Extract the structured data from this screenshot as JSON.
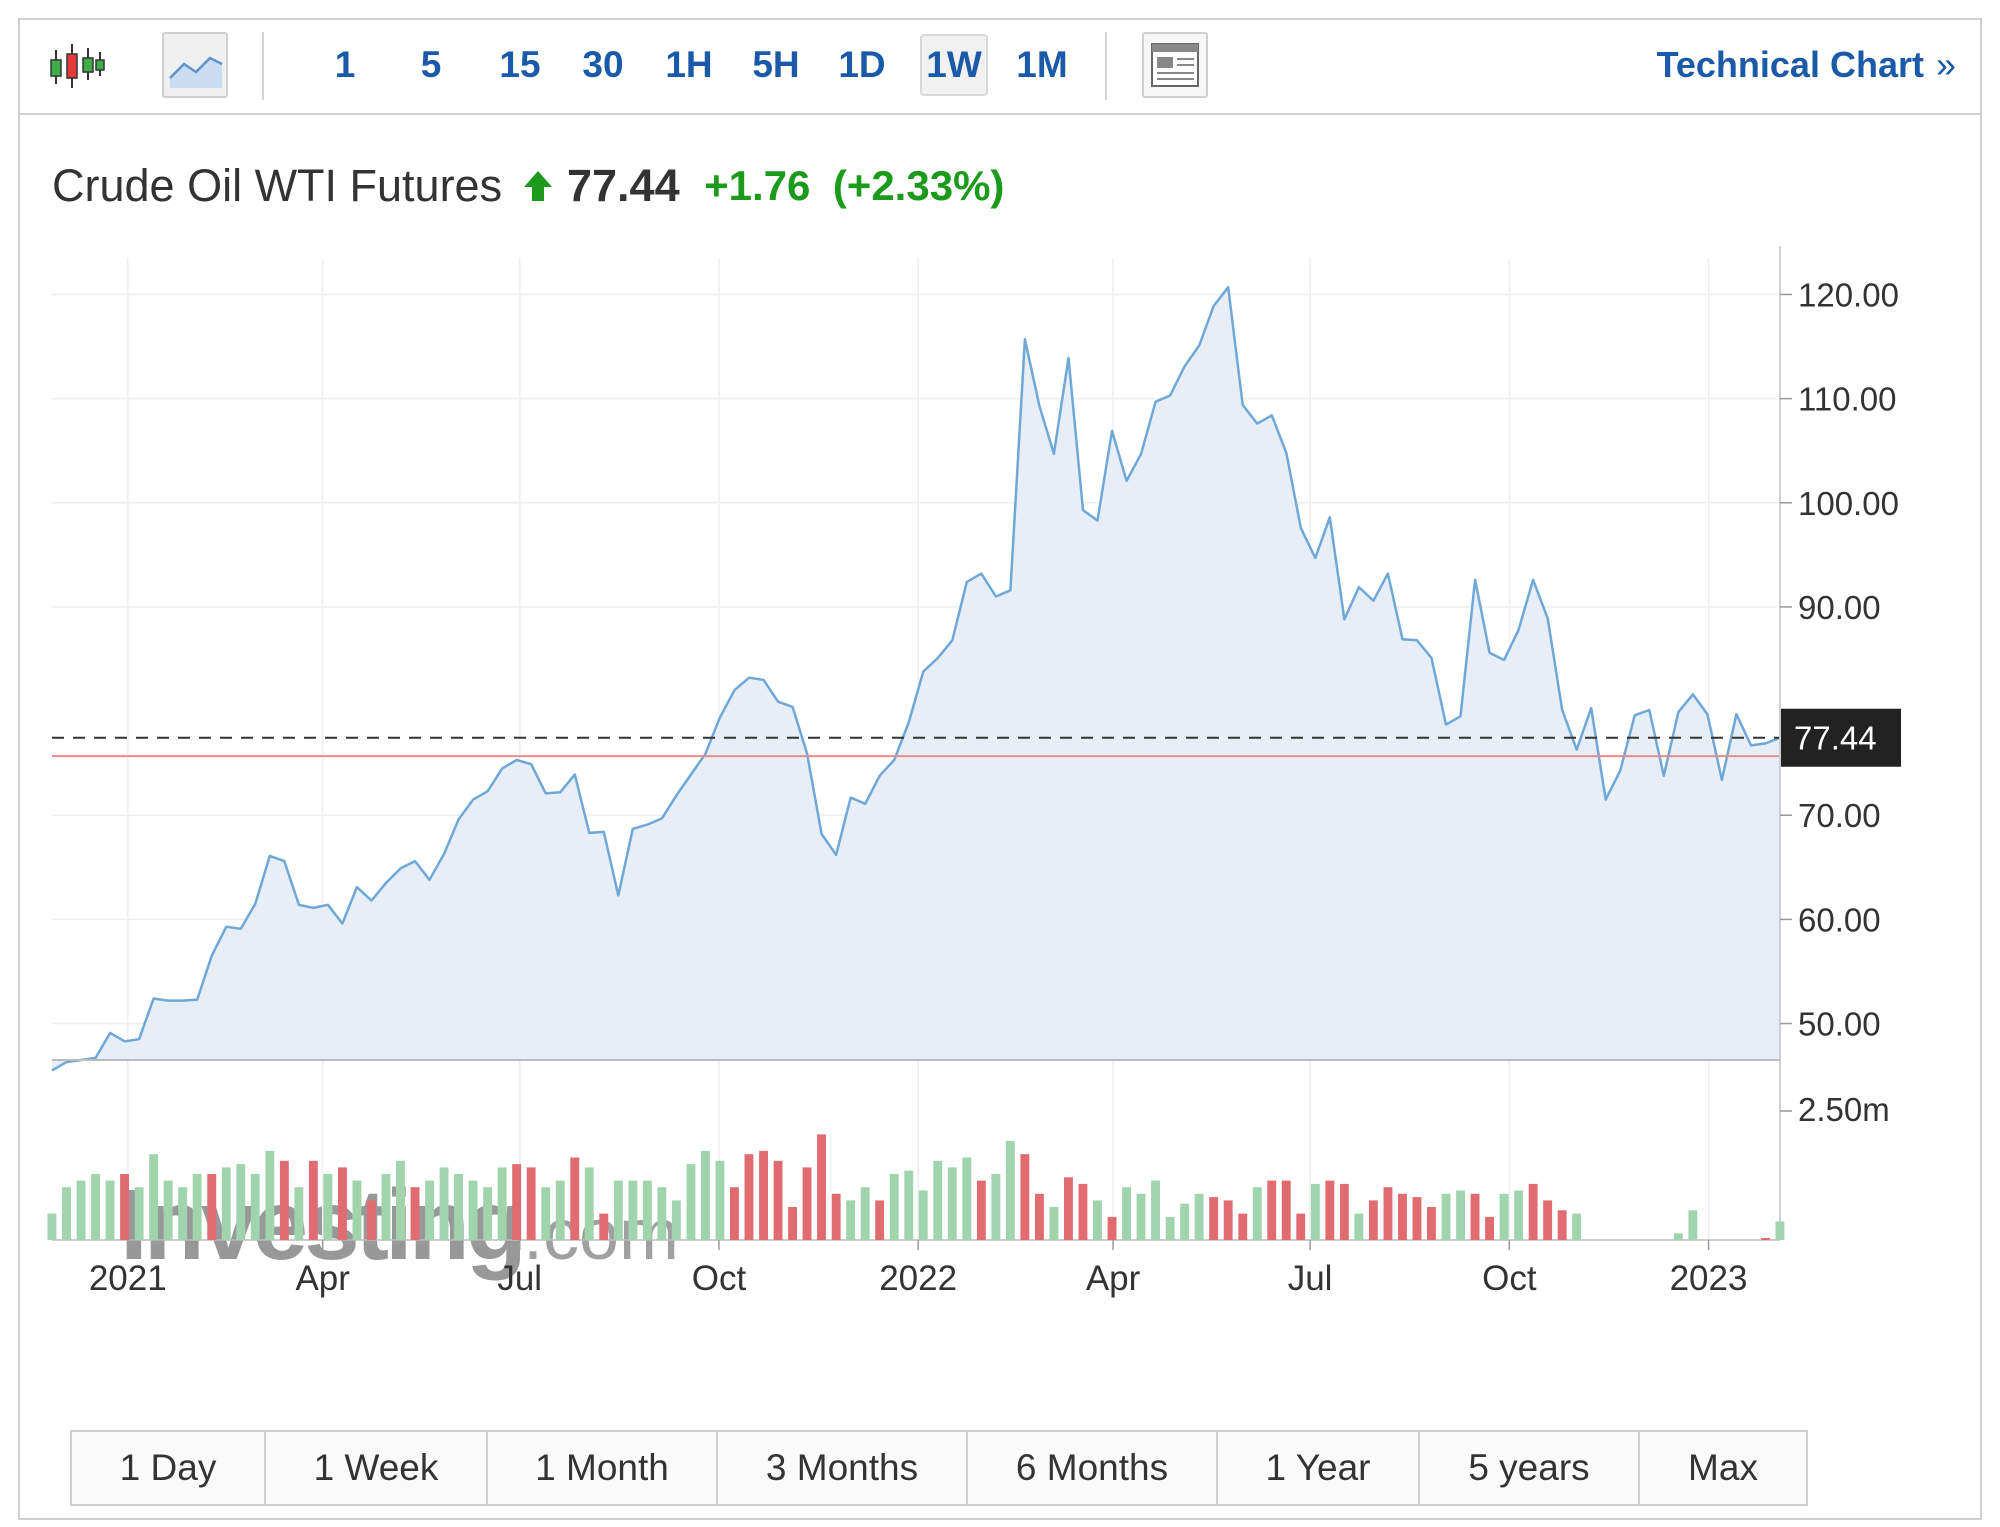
{
  "toolbar": {
    "intervals": [
      "1",
      "5",
      "15",
      "30",
      "1H",
      "5H",
      "1D",
      "1W",
      "1M"
    ],
    "active_interval": "1W",
    "technical_chart_label": "Technical Chart",
    "technical_chart_chevron": "»"
  },
  "instrument": {
    "name": "Crude Oil WTI Futures",
    "last": "77.44",
    "change": "+1.76",
    "change_pct": "(+2.33%)"
  },
  "colors": {
    "line": "#6fa8d6",
    "area": "#e7eef8",
    "up_volume": "#9fd4ac",
    "down_volume": "#e06c72",
    "price_line": "#f08a8a",
    "accent_green": "#1b9a1b",
    "link_blue": "#1a5aa8"
  },
  "watermark": {
    "brand": "Investing",
    "suffix": ".com"
  },
  "range_buttons": [
    "1 Day",
    "1 Week",
    "1 Month",
    "3 Months",
    "6 Months",
    "1 Year",
    "5 years",
    "Max"
  ],
  "chart_data": {
    "type": "area",
    "title": "Crude Oil WTI Futures",
    "frequency": "weekly",
    "x_start": "2020-11-27",
    "x_end": "2023-02-03",
    "x_ticks": [
      {
        "label": "2021",
        "date": "2021-01-01"
      },
      {
        "label": "Apr",
        "date": "2021-04-01"
      },
      {
        "label": "Jul",
        "date": "2021-07-01"
      },
      {
        "label": "Oct",
        "date": "2021-10-01"
      },
      {
        "label": "2022",
        "date": "2022-01-01"
      },
      {
        "label": "Apr",
        "date": "2022-04-01"
      },
      {
        "label": "Jul",
        "date": "2022-07-01"
      },
      {
        "label": "Oct",
        "date": "2022-10-01"
      },
      {
        "label": "2023",
        "date": "2023-01-01"
      }
    ],
    "y_ticks": [
      "120.00",
      "110.00",
      "100.00",
      "90.00",
      "70.00",
      "60.00",
      "50.00"
    ],
    "ylim": [
      46.5,
      123.5
    ],
    "current_price": 77.44,
    "current_price_label": "77.44",
    "previous_close": 75.68,
    "grid": true,
    "price": [
      45.5,
      46.3,
      46.5,
      46.7,
      49.1,
      48.3,
      48.5,
      52.4,
      52.2,
      52.2,
      52.3,
      56.5,
      59.3,
      59.1,
      61.5,
      66.1,
      65.6,
      61.4,
      61.1,
      61.4,
      59.6,
      63.1,
      61.8,
      63.5,
      64.9,
      65.6,
      63.8,
      66.3,
      69.6,
      71.5,
      72.3,
      74.5,
      75.3,
      74.9,
      72.1,
      72.2,
      73.9,
      68.3,
      68.4,
      62.3,
      68.7,
      69.1,
      69.7,
      71.9,
      73.9,
      75.9,
      79.4,
      82.0,
      83.2,
      83.0,
      80.9,
      80.4,
      75.9,
      68.2,
      66.2,
      71.7,
      71.1,
      73.8,
      75.3,
      78.9,
      83.8,
      85.1,
      86.8,
      92.4,
      93.2,
      91.0,
      91.6,
      115.7,
      109.3,
      104.7,
      113.9,
      99.3,
      98.3,
      106.9,
      102.1,
      104.7,
      109.7,
      110.3,
      113.1,
      115.1,
      118.9,
      120.7,
      109.4,
      107.6,
      108.4,
      104.8,
      97.6,
      94.7,
      98.6,
      88.8,
      91.9,
      90.6,
      93.2,
      86.9,
      86.8,
      85.1,
      78.7,
      79.5,
      92.6,
      85.6,
      84.9,
      87.8,
      92.6,
      88.9,
      80.1,
      76.3,
      80.3,
      71.5,
      74.3,
      79.6,
      80.1,
      73.8,
      79.9,
      81.6,
      79.7,
      73.4,
      79.7,
      76.7,
      76.9,
      77.44
    ],
    "volume_scale": [
      0,
      2.5
    ],
    "volume_tick": "2.50m",
    "volume": [
      {
        "v": 0.4,
        "d": "up"
      },
      {
        "v": 0.8,
        "d": "up"
      },
      {
        "v": 0.9,
        "d": "up"
      },
      {
        "v": 1.0,
        "d": "up"
      },
      {
        "v": 0.9,
        "d": "up"
      },
      {
        "v": 1.0,
        "d": "down"
      },
      {
        "v": 0.8,
        "d": "up"
      },
      {
        "v": 1.3,
        "d": "up"
      },
      {
        "v": 0.9,
        "d": "up"
      },
      {
        "v": 0.8,
        "d": "up"
      },
      {
        "v": 1.0,
        "d": "up"
      },
      {
        "v": 1.0,
        "d": "down"
      },
      {
        "v": 1.1,
        "d": "up"
      },
      {
        "v": 1.15,
        "d": "up"
      },
      {
        "v": 1.0,
        "d": "up"
      },
      {
        "v": 1.35,
        "d": "up"
      },
      {
        "v": 1.2,
        "d": "down"
      },
      {
        "v": 0.8,
        "d": "up"
      },
      {
        "v": 1.2,
        "d": "down"
      },
      {
        "v": 1.0,
        "d": "up"
      },
      {
        "v": 1.1,
        "d": "down"
      },
      {
        "v": 0.9,
        "d": "up"
      },
      {
        "v": 0.6,
        "d": "down"
      },
      {
        "v": 1.0,
        "d": "up"
      },
      {
        "v": 1.2,
        "d": "up"
      },
      {
        "v": 0.8,
        "d": "down"
      },
      {
        "v": 0.9,
        "d": "up"
      },
      {
        "v": 1.1,
        "d": "up"
      },
      {
        "v": 1.0,
        "d": "up"
      },
      {
        "v": 0.9,
        "d": "up"
      },
      {
        "v": 0.8,
        "d": "up"
      },
      {
        "v": 1.1,
        "d": "up"
      },
      {
        "v": 1.15,
        "d": "down"
      },
      {
        "v": 1.1,
        "d": "down"
      },
      {
        "v": 0.8,
        "d": "up"
      },
      {
        "v": 0.9,
        "d": "up"
      },
      {
        "v": 1.25,
        "d": "down"
      },
      {
        "v": 1.1,
        "d": "up"
      },
      {
        "v": 0.4,
        "d": "down"
      },
      {
        "v": 0.9,
        "d": "up"
      },
      {
        "v": 0.9,
        "d": "up"
      },
      {
        "v": 0.9,
        "d": "up"
      },
      {
        "v": 0.8,
        "d": "up"
      },
      {
        "v": 0.6,
        "d": "up"
      },
      {
        "v": 1.15,
        "d": "up"
      },
      {
        "v": 1.35,
        "d": "up"
      },
      {
        "v": 1.2,
        "d": "up"
      },
      {
        "v": 0.8,
        "d": "down"
      },
      {
        "v": 1.3,
        "d": "down"
      },
      {
        "v": 1.35,
        "d": "down"
      },
      {
        "v": 1.2,
        "d": "down"
      },
      {
        "v": 0.5,
        "d": "down"
      },
      {
        "v": 1.1,
        "d": "down"
      },
      {
        "v": 1.6,
        "d": "down"
      },
      {
        "v": 0.7,
        "d": "down"
      },
      {
        "v": 0.6,
        "d": "up"
      },
      {
        "v": 0.8,
        "d": "up"
      },
      {
        "v": 0.6,
        "d": "down"
      },
      {
        "v": 1.0,
        "d": "up"
      },
      {
        "v": 1.05,
        "d": "up"
      },
      {
        "v": 0.75,
        "d": "up"
      },
      {
        "v": 1.2,
        "d": "up"
      },
      {
        "v": 1.1,
        "d": "up"
      },
      {
        "v": 1.25,
        "d": "up"
      },
      {
        "v": 0.9,
        "d": "down"
      },
      {
        "v": 1.0,
        "d": "up"
      },
      {
        "v": 1.5,
        "d": "up"
      },
      {
        "v": 1.3,
        "d": "down"
      },
      {
        "v": 0.7,
        "d": "down"
      },
      {
        "v": 0.5,
        "d": "up"
      },
      {
        "v": 0.95,
        "d": "down"
      },
      {
        "v": 0.85,
        "d": "down"
      },
      {
        "v": 0.6,
        "d": "up"
      },
      {
        "v": 0.35,
        "d": "down"
      },
      {
        "v": 0.8,
        "d": "up"
      },
      {
        "v": 0.7,
        "d": "up"
      },
      {
        "v": 0.9,
        "d": "up"
      },
      {
        "v": 0.35,
        "d": "up"
      },
      {
        "v": 0.55,
        "d": "up"
      },
      {
        "v": 0.7,
        "d": "up"
      },
      {
        "v": 0.65,
        "d": "down"
      },
      {
        "v": 0.6,
        "d": "down"
      },
      {
        "v": 0.4,
        "d": "down"
      },
      {
        "v": 0.8,
        "d": "up"
      },
      {
        "v": 0.9,
        "d": "down"
      },
      {
        "v": 0.9,
        "d": "down"
      },
      {
        "v": 0.4,
        "d": "down"
      },
      {
        "v": 0.85,
        "d": "up"
      },
      {
        "v": 0.9,
        "d": "down"
      },
      {
        "v": 0.85,
        "d": "down"
      },
      {
        "v": 0.4,
        "d": "up"
      },
      {
        "v": 0.6,
        "d": "down"
      },
      {
        "v": 0.8,
        "d": "down"
      },
      {
        "v": 0.7,
        "d": "down"
      },
      {
        "v": 0.65,
        "d": "down"
      },
      {
        "v": 0.5,
        "d": "down"
      },
      {
        "v": 0.7,
        "d": "up"
      },
      {
        "v": 0.75,
        "d": "up"
      },
      {
        "v": 0.7,
        "d": "down"
      },
      {
        "v": 0.35,
        "d": "down"
      },
      {
        "v": 0.7,
        "d": "up"
      },
      {
        "v": 0.75,
        "d": "up"
      },
      {
        "v": 0.85,
        "d": "down"
      },
      {
        "v": 0.6,
        "d": "down"
      },
      {
        "v": 0.45,
        "d": "down"
      },
      {
        "v": 0.4,
        "d": "up"
      },
      {
        "v": 0,
        "d": "up"
      },
      {
        "v": 0,
        "d": "up"
      },
      {
        "v": 0,
        "d": "up"
      },
      {
        "v": 0,
        "d": "up"
      },
      {
        "v": 0,
        "d": "up"
      },
      {
        "v": 0,
        "d": "up"
      },
      {
        "v": 0.1,
        "d": "up"
      },
      {
        "v": 0.45,
        "d": "up"
      },
      {
        "v": 0,
        "d": "up"
      },
      {
        "v": 0,
        "d": "up"
      },
      {
        "v": 0,
        "d": "up"
      },
      {
        "v": 0,
        "d": "up"
      },
      {
        "v": 0.03,
        "d": "down"
      },
      {
        "v": 0.28,
        "d": "up"
      }
    ]
  }
}
